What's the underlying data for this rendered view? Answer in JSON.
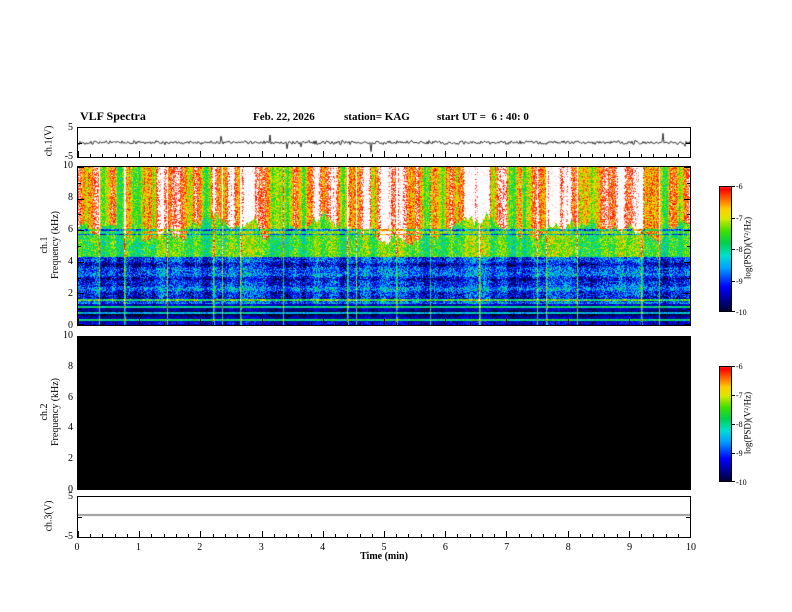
{
  "title": "VLF Spectra",
  "header": {
    "date": "Feb. 22, 2026",
    "station": "station= KAG",
    "start_ut": "start UT =  6 : 40: 0"
  },
  "xaxis": {
    "label": "Time (min)",
    "ticks": [
      "0",
      "1",
      "2",
      "3",
      "4",
      "5",
      "6",
      "7",
      "8",
      "9",
      "10"
    ],
    "range_min": [
      0,
      10
    ]
  },
  "colorbar": {
    "label": "log(PSD)(V²/Hz)",
    "ticks": [
      "-6",
      "-7",
      "-8",
      "-9",
      "-10"
    ],
    "range": [
      -6,
      -10
    ]
  },
  "colormap": [
    [
      -10.2,
      "#000000"
    ],
    [
      -9.7,
      "#000080"
    ],
    [
      -9.2,
      "#0000ff"
    ],
    [
      -8.6,
      "#00a0ff"
    ],
    [
      -8.2,
      "#00e0d0"
    ],
    [
      -7.8,
      "#00d050"
    ],
    [
      -7.4,
      "#40e000"
    ],
    [
      -7.0,
      "#d8e800"
    ],
    [
      -6.7,
      "#ffd000"
    ],
    [
      -6.35,
      "#ff6000"
    ],
    [
      -6.05,
      "#ff0000"
    ],
    [
      -5.85,
      "#ff9080"
    ],
    [
      -5.65,
      "#ffffff"
    ]
  ],
  "chart_data": [
    {
      "id": "ch1_waveform",
      "type": "line",
      "ylabel": "ch.1(V)",
      "ylim": [
        -5,
        5
      ],
      "ytick_labels": [
        "5",
        "-5"
      ],
      "baseline_v": 0,
      "noise_amp_v": 0.9,
      "spike_amp_v": 3.5,
      "description": "broadband noise trace centred near 0 V with sporadic narrow spikes"
    },
    {
      "id": "ch1_spectrogram",
      "type": "heatmap",
      "ylabel_lines": [
        "ch.1",
        "Frequency (kHz)"
      ],
      "ylim": [
        0,
        10
      ],
      "xlim": [
        0,
        10
      ],
      "ytick_labels": [
        "10",
        "8",
        "6",
        "4",
        "2",
        "0"
      ],
      "bands": [
        {
          "fmin": 6.2,
          "fmax": 10.0,
          "level": -6.45,
          "noise": 0.55,
          "col_mod": 0.95,
          "note": "intense red band with white saturated vertical streaks"
        },
        {
          "fmin": 4.35,
          "fmax": 6.2,
          "level": -7.55,
          "noise": 0.65,
          "col_mod": 0.35,
          "note": "green-yellow mid band"
        },
        {
          "fmin": 1.35,
          "fmax": 4.35,
          "level": -9.05,
          "noise": 0.75,
          "col_mod": 0.3,
          "note": "blue band with cyan-green speckle and horizontal banding"
        },
        {
          "fmin": 0.0,
          "fmax": 1.35,
          "level": -9.7,
          "noise": 0.4,
          "col_mod": 0.15,
          "note": "dark low band with bright narrow spectral lines"
        }
      ],
      "bright_hlines_khz": [
        0.35,
        0.8,
        1.15,
        1.6
      ],
      "dark_hlines_khz": [
        5.75,
        6.05
      ],
      "interference_lines_min": [
        0.35,
        0.75,
        1.45,
        2.2,
        2.35,
        2.65,
        3.35,
        4.4,
        4.55,
        5.2,
        5.75,
        6.55,
        7.5,
        7.65,
        8.15,
        9.2,
        9.5
      ]
    },
    {
      "id": "ch2_spectrogram",
      "type": "heatmap",
      "ylabel_lines": [
        "ch.2",
        "Frequency (kHz)"
      ],
      "ylim": [
        0,
        10
      ],
      "xlim": [
        0,
        10
      ],
      "ytick_labels": [
        "10",
        "8",
        "6",
        "4",
        "2",
        "0"
      ],
      "bands": [],
      "fill": "#000000",
      "note": "no signal - solid black panel"
    },
    {
      "id": "ch3_waveform",
      "type": "line",
      "ylabel": "ch.3(V)",
      "ylim": [
        -5,
        5
      ],
      "ytick_labels": [
        "5",
        "-5"
      ],
      "baseline_v": 0.5,
      "noise_amp_v": 0,
      "spike_amp_v": 0,
      "description": "flat line slightly above 0 V"
    }
  ]
}
